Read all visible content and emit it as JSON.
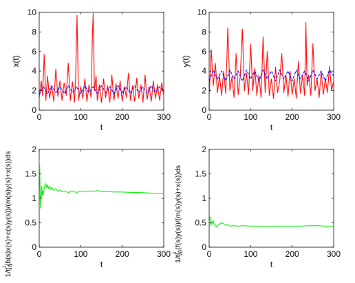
{
  "chart_data": [
    {
      "type": "line",
      "xlabel": "t",
      "ylabel": "x(t)",
      "xlim": [
        0,
        300
      ],
      "ylim": [
        0,
        10
      ],
      "xticks": [
        "0",
        "100",
        "200",
        "300"
      ],
      "yticks": [
        "0",
        "2",
        "4",
        "6",
        "8",
        "10"
      ],
      "grid": false,
      "series": [
        {
          "style": "solid",
          "color": "#ff0000",
          "x": [
            0,
            5,
            8,
            12,
            16,
            20,
            25,
            30,
            35,
            40,
            45,
            50,
            55,
            60,
            65,
            70,
            75,
            80,
            85,
            88,
            91,
            95,
            100,
            105,
            110,
            115,
            120,
            125,
            128,
            130,
            133,
            137,
            140,
            145,
            150,
            155,
            160,
            165,
            170,
            175,
            180,
            185,
            190,
            195,
            200,
            205,
            210,
            215,
            220,
            225,
            230,
            235,
            240,
            245,
            250,
            255,
            260,
            265,
            270,
            275,
            280,
            285,
            290,
            295,
            300
          ],
          "y": [
            1.2,
            3.0,
            1.5,
            5.7,
            1.0,
            3.5,
            1.2,
            2.5,
            0.9,
            4.2,
            1.4,
            3.0,
            1.0,
            2.8,
            1.5,
            4.8,
            1.0,
            2.9,
            0.8,
            3.8,
            9.7,
            1.0,
            2.4,
            1.2,
            3.2,
            0.9,
            2.6,
            1.3,
            7.5,
            9.9,
            2.0,
            3.5,
            1.0,
            2.6,
            0.8,
            3.2,
            1.3,
            2.5,
            0.8,
            3.6,
            1.0,
            2.7,
            1.2,
            3.0,
            0.9,
            2.4,
            1.3,
            3.8,
            1.0,
            2.5,
            0.9,
            3.3,
            1.2,
            2.6,
            0.8,
            3.6,
            1.1,
            2.4,
            0.9,
            3.0,
            1.2,
            2.6,
            1.0,
            2.8,
            1.5
          ]
        },
        {
          "style": "dashed",
          "color": "#0000ff",
          "x": [
            0,
            10,
            20,
            30,
            40,
            50,
            60,
            70,
            80,
            90,
            100,
            110,
            120,
            130,
            140,
            150,
            160,
            170,
            180,
            190,
            200,
            210,
            220,
            230,
            240,
            250,
            260,
            270,
            280,
            290,
            300
          ],
          "y": [
            1.6,
            2.4,
            1.7,
            2.5,
            1.8,
            2.4,
            1.7,
            2.5,
            1.8,
            2.4,
            1.7,
            2.5,
            1.8,
            2.4,
            1.7,
            2.5,
            1.8,
            2.4,
            1.7,
            2.5,
            1.8,
            2.4,
            1.7,
            2.5,
            1.8,
            2.4,
            1.7,
            2.5,
            1.8,
            2.4,
            2.0
          ]
        }
      ]
    },
    {
      "type": "line",
      "xlabel": "t",
      "ylabel": "y(t)",
      "xlim": [
        0,
        300
      ],
      "ylim": [
        0,
        10
      ],
      "xticks": [
        "0",
        "100",
        "200",
        "300"
      ],
      "yticks": [
        "0",
        "2",
        "4",
        "6",
        "8",
        "10"
      ],
      "grid": false,
      "series": [
        {
          "style": "solid",
          "color": "#ff0000",
          "x": [
            0,
            5,
            10,
            15,
            20,
            25,
            30,
            35,
            40,
            45,
            50,
            55,
            60,
            65,
            70,
            75,
            80,
            85,
            90,
            95,
            100,
            105,
            110,
            115,
            120,
            125,
            130,
            135,
            140,
            145,
            150,
            155,
            160,
            165,
            170,
            175,
            180,
            185,
            190,
            195,
            200,
            205,
            210,
            215,
            220,
            225,
            230,
            233,
            236,
            240,
            245,
            250,
            255,
            260,
            265,
            270,
            275,
            280,
            285,
            290,
            295,
            300
          ],
          "y": [
            1.4,
            6.2,
            2.5,
            4.8,
            1.8,
            3.5,
            1.5,
            4.0,
            1.7,
            8.4,
            2.0,
            3.4,
            1.3,
            5.8,
            1.6,
            3.5,
            8.3,
            2.0,
            3.8,
            1.6,
            6.8,
            2.0,
            4.3,
            1.5,
            3.6,
            1.3,
            7.5,
            1.8,
            6.0,
            1.5,
            3.2,
            1.2,
            4.4,
            1.8,
            3.0,
            5.8,
            1.8,
            3.6,
            1.4,
            4.0,
            1.6,
            3.2,
            1.2,
            5.0,
            1.7,
            3.5,
            1.5,
            9.0,
            2.5,
            3.6,
            1.5,
            6.8,
            2.0,
            3.2,
            1.3,
            4.0,
            1.6,
            3.2,
            1.8,
            4.5,
            2.0,
            3.0
          ]
        },
        {
          "style": "dashed",
          "color": "#0000ff",
          "x": [
            0,
            10,
            20,
            30,
            40,
            50,
            60,
            70,
            80,
            90,
            100,
            110,
            120,
            130,
            140,
            150,
            160,
            170,
            180,
            190,
            200,
            210,
            220,
            230,
            240,
            250,
            260,
            270,
            280,
            290,
            300
          ],
          "y": [
            3.0,
            4.1,
            3.2,
            4.0,
            3.0,
            4.1,
            3.2,
            4.0,
            3.0,
            4.1,
            3.2,
            4.0,
            3.0,
            4.1,
            3.2,
            4.0,
            3.0,
            4.1,
            3.2,
            4.0,
            3.0,
            4.1,
            3.2,
            4.0,
            3.0,
            4.1,
            3.2,
            4.0,
            3.0,
            4.1,
            3.5
          ]
        }
      ]
    },
    {
      "type": "line",
      "xlabel": "t",
      "ylabel_parts": [
        "1/t∫",
        "0",
        "t",
        "(b(s)x(s)+c(s)y(s))/(m(s)y(s)+x(s))ds"
      ],
      "xlim": [
        0,
        300
      ],
      "ylim": [
        0,
        2
      ],
      "xticks": [
        "0",
        "100",
        "200",
        "300"
      ],
      "yticks": [
        "0",
        "0.5",
        "1",
        "1.5",
        "2"
      ],
      "grid": false,
      "series": [
        {
          "style": "solid",
          "color": "#00ee00",
          "x": [
            0,
            1,
            2,
            3,
            4,
            5,
            6,
            7,
            8,
            10,
            12,
            14,
            16,
            18,
            20,
            22,
            25,
            28,
            30,
            35,
            40,
            45,
            50,
            55,
            60,
            70,
            80,
            90,
            100,
            110,
            120,
            130,
            140,
            150,
            160,
            180,
            200,
            220,
            240,
            260,
            280,
            300
          ],
          "y": [
            1.78,
            1.65,
            1.2,
            0.8,
            1.05,
            1.0,
            1.25,
            1.05,
            1.15,
            1.08,
            1.2,
            1.28,
            1.3,
            1.22,
            1.27,
            1.2,
            1.25,
            1.18,
            1.22,
            1.16,
            1.2,
            1.14,
            1.17,
            1.13,
            1.15,
            1.12,
            1.15,
            1.12,
            1.15,
            1.13,
            1.15,
            1.14,
            1.16,
            1.14,
            1.14,
            1.13,
            1.13,
            1.12,
            1.12,
            1.11,
            1.1,
            1.1
          ]
        }
      ]
    },
    {
      "type": "line",
      "xlabel": "t",
      "ylabel_parts": [
        "1/t∫",
        "0",
        "t",
        " (f(s)y(s))/(m(s)y(s)+x(s))ds"
      ],
      "xlim": [
        0,
        300
      ],
      "ylim": [
        0,
        2
      ],
      "xticks": [
        "0",
        "100",
        "200",
        "300"
      ],
      "yticks": [
        "0",
        "0.5",
        "1",
        "1.5",
        "2"
      ],
      "grid": false,
      "series": [
        {
          "style": "solid",
          "color": "#00ee00",
          "x": [
            0,
            2,
            4,
            6,
            8,
            10,
            12,
            15,
            18,
            20,
            25,
            30,
            35,
            40,
            45,
            50,
            60,
            70,
            80,
            100,
            120,
            140,
            160,
            180,
            200,
            220,
            240,
            260,
            280,
            300
          ],
          "y": [
            0.5,
            0.62,
            0.45,
            0.52,
            0.48,
            0.55,
            0.47,
            0.44,
            0.41,
            0.44,
            0.47,
            0.5,
            0.48,
            0.45,
            0.46,
            0.43,
            0.44,
            0.43,
            0.44,
            0.43,
            0.43,
            0.42,
            0.43,
            0.43,
            0.43,
            0.43,
            0.44,
            0.44,
            0.43,
            0.43
          ]
        }
      ]
    }
  ]
}
